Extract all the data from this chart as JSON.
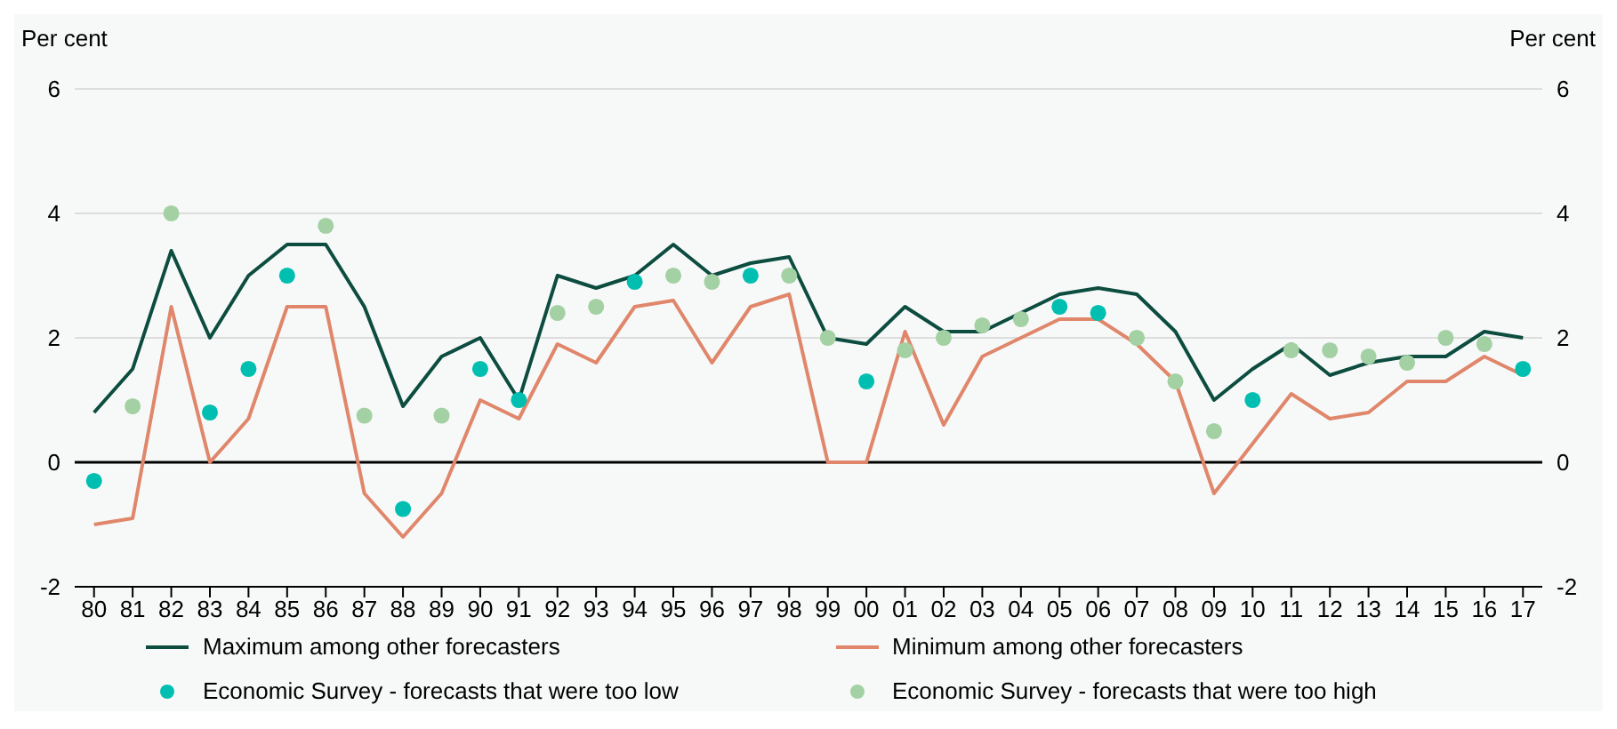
{
  "chart_data": {
    "type": "line",
    "ylabel": "Per cent",
    "y2label": "Per cent",
    "categories": [
      "80",
      "81",
      "82",
      "83",
      "84",
      "85",
      "86",
      "87",
      "88",
      "89",
      "90",
      "91",
      "92",
      "93",
      "94",
      "95",
      "96",
      "97",
      "98",
      "99",
      "00",
      "01",
      "02",
      "03",
      "04",
      "05",
      "06",
      "07",
      "08",
      "09",
      "10",
      "11",
      "12",
      "13",
      "14",
      "15",
      "16",
      "17"
    ],
    "series": [
      {
        "name": "Maximum among other forecasters",
        "color": "#0d4d3f",
        "marker": "none",
        "values": [
          0.8,
          1.5,
          3.4,
          2.0,
          3.0,
          3.5,
          3.5,
          2.5,
          0.9,
          1.7,
          2.0,
          1.0,
          3.0,
          2.8,
          3.0,
          3.5,
          3.0,
          3.2,
          3.3,
          2.0,
          1.9,
          2.5,
          2.1,
          2.1,
          2.4,
          2.7,
          2.8,
          2.7,
          2.1,
          1.0,
          1.5,
          1.9,
          1.4,
          1.6,
          1.7,
          1.7,
          2.1,
          2.0
        ]
      },
      {
        "name": "Minimum among other forecasters",
        "color": "#e0876b",
        "marker": "none",
        "values": [
          -1.0,
          -0.9,
          2.5,
          0.0,
          0.7,
          2.5,
          2.5,
          -0.5,
          -1.2,
          -0.5,
          1.0,
          0.7,
          1.9,
          1.6,
          2.5,
          2.6,
          1.6,
          2.5,
          2.7,
          0.0,
          0.0,
          2.1,
          0.6,
          1.7,
          2.0,
          2.3,
          2.3,
          1.9,
          1.3,
          -0.5,
          0.3,
          1.1,
          0.7,
          0.8,
          1.3,
          1.3,
          1.7,
          1.4
        ]
      },
      {
        "name": "Economic Survey - forecasts that were too low",
        "type": "scatter",
        "color": "#00bfb0",
        "marker": "circle",
        "values": [
          -0.3,
          null,
          null,
          0.8,
          1.5,
          3.0,
          null,
          null,
          -0.75,
          null,
          1.5,
          1.0,
          null,
          null,
          2.9,
          null,
          null,
          3.0,
          null,
          null,
          1.3,
          null,
          null,
          null,
          null,
          2.5,
          2.4,
          null,
          null,
          null,
          1.0,
          null,
          null,
          null,
          null,
          null,
          null,
          1.5
        ]
      },
      {
        "name": "Economic Survey - forecasts that were too high",
        "type": "scatter",
        "color": "#a3d1a3",
        "marker": "circle",
        "values": [
          null,
          0.9,
          4.0,
          null,
          null,
          null,
          3.8,
          0.75,
          null,
          0.75,
          null,
          null,
          2.4,
          2.5,
          null,
          3.0,
          2.9,
          null,
          3.0,
          2.0,
          null,
          1.8,
          2.0,
          2.2,
          2.3,
          null,
          null,
          2.0,
          1.3,
          0.5,
          null,
          1.8,
          1.8,
          1.7,
          1.6,
          2.0,
          1.9,
          null
        ]
      }
    ],
    "ylim": [
      -2,
      6
    ],
    "yticks": [
      -2,
      0,
      2,
      4,
      6
    ],
    "y2lim": [
      -2,
      6
    ],
    "y2ticks": [
      -2,
      0,
      2,
      4,
      6
    ],
    "ref_lines": [
      {
        "axis": "y",
        "value": 0,
        "color": "#000000"
      }
    ],
    "grid": "y",
    "legend": "bottom"
  }
}
